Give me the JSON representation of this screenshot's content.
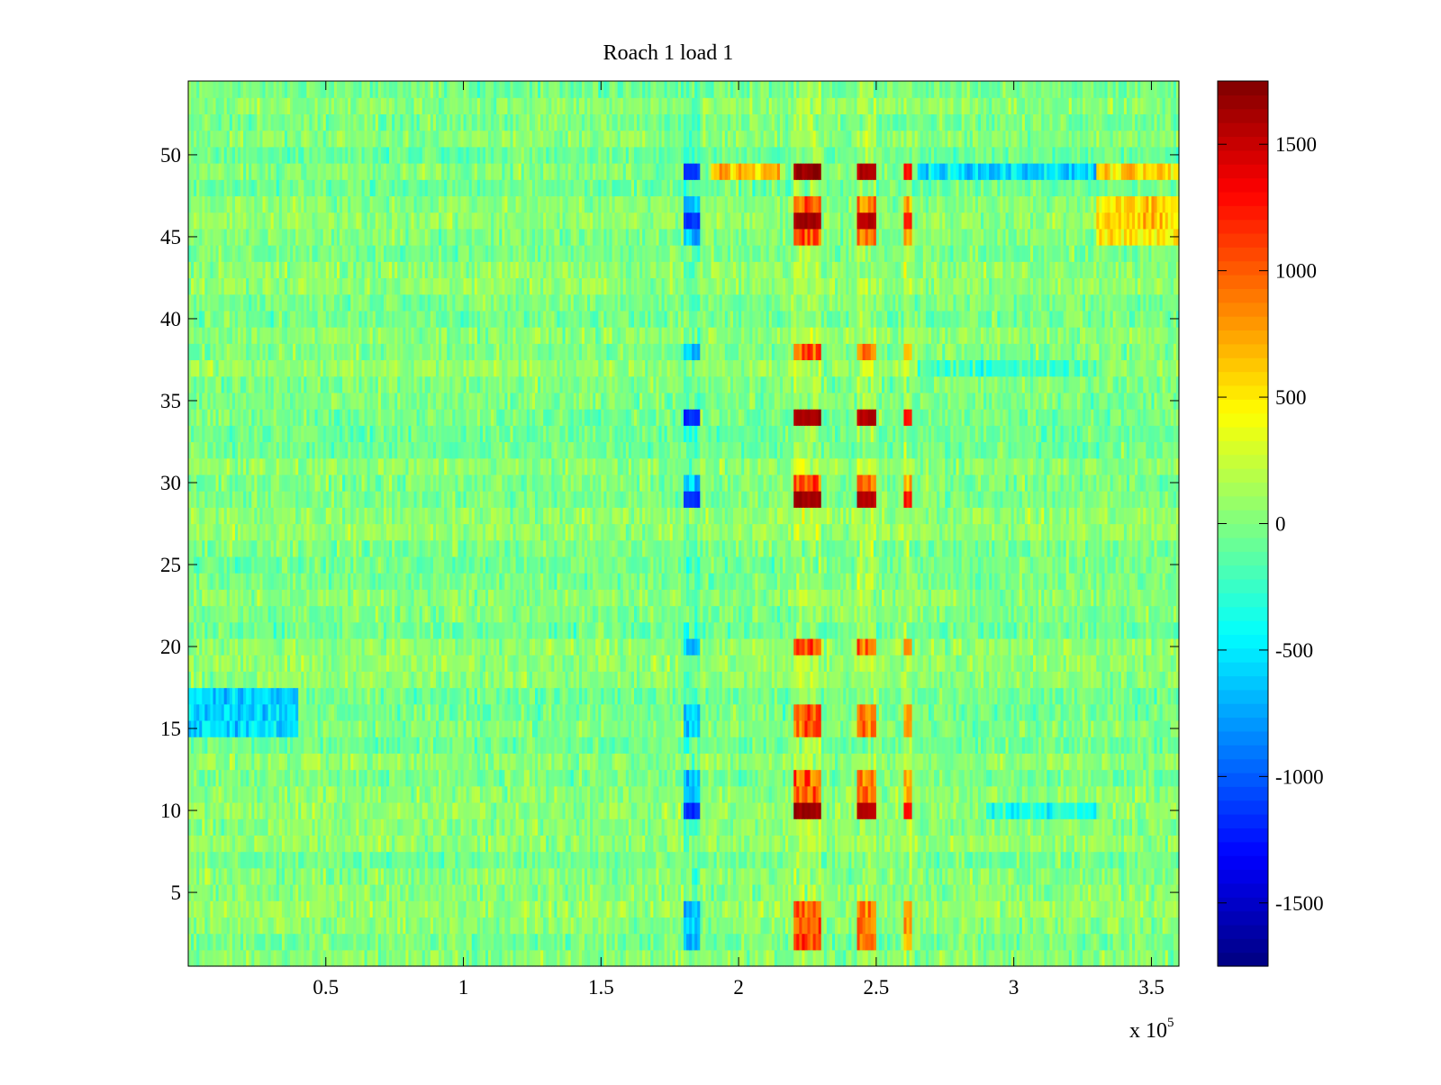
{
  "chart_data": {
    "type": "heatmap",
    "title": "Roach 1 load 1",
    "xlabel": "",
    "ylabel": "",
    "x_exponent_base": "x 10",
    "x_exponent_power": "5",
    "xlim": [
      0,
      3.6
    ],
    "ylim": [
      0.5,
      54.5
    ],
    "x_ticks": [
      0.5,
      1,
      1.5,
      2,
      2.5,
      3,
      3.5
    ],
    "x_tick_labels": [
      "0.5",
      "1",
      "1.5",
      "2",
      "2.5",
      "3",
      "3.5"
    ],
    "y_ticks": [
      5,
      10,
      15,
      20,
      25,
      30,
      35,
      40,
      45,
      50
    ],
    "y_tick_labels": [
      "5",
      "10",
      "15",
      "20",
      "25",
      "30",
      "35",
      "40",
      "45",
      "50"
    ],
    "colorbar": {
      "colormap": "jet",
      "clim": [
        -1750,
        1750
      ],
      "ticks": [
        1500,
        1000,
        500,
        0,
        -500,
        -1000,
        -1500
      ],
      "tick_labels": [
        "1500",
        "1000",
        "500",
        "0",
        "-500",
        "-1000",
        "-1500"
      ]
    },
    "rows": 54,
    "cols": 360,
    "background_value": 0,
    "noise_amplitude": 300,
    "high_rows": [
      2,
      3,
      4,
      10,
      11,
      12,
      15,
      16,
      20,
      29,
      30,
      34,
      38,
      45,
      46,
      47,
      49
    ],
    "strong_rows": [
      10,
      29,
      34,
      46,
      49
    ],
    "features": [
      {
        "x_range": [
          2.2,
          2.3
        ],
        "value": 1400,
        "strong_value": 1650
      },
      {
        "x_range": [
          2.43,
          2.5
        ],
        "value": 1250,
        "strong_value": 1550
      },
      {
        "x_range": [
          2.6,
          2.63
        ],
        "value": 1000,
        "strong_value": 1250
      },
      {
        "x_range": [
          1.8,
          1.86
        ],
        "value": -900,
        "strong_value": -1150
      }
    ],
    "row_biases": [
      {
        "rows": [
          15,
          16,
          17
        ],
        "x_range": [
          0.0,
          0.4
        ],
        "value": -650
      },
      {
        "rows": [
          45,
          46,
          47,
          49
        ],
        "x_range": [
          3.3,
          3.6
        ],
        "value": 650
      },
      {
        "rows": [
          49
        ],
        "x_range": [
          1.9,
          2.15
        ],
        "value": 800
      },
      {
        "rows": [
          49
        ],
        "x_range": [
          2.65,
          3.3
        ],
        "value": -700
      },
      {
        "rows": [
          37
        ],
        "x_range": [
          2.65,
          3.3
        ],
        "value": -400
      },
      {
        "rows": [
          10
        ],
        "x_range": [
          2.9,
          3.3
        ],
        "value": -500
      }
    ]
  }
}
